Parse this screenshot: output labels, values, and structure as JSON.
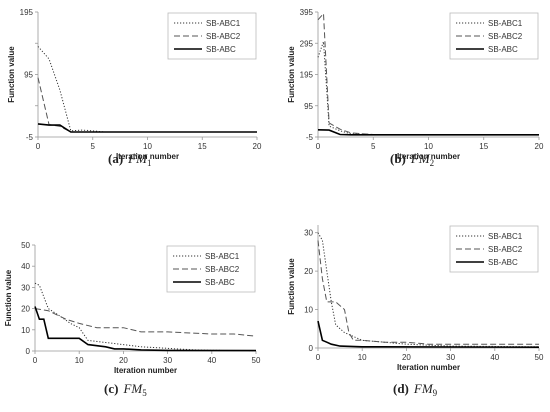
{
  "chart_data": [
    {
      "type": "line",
      "panel_id": "(a)",
      "caption_main": "FM",
      "caption_sub": "1",
      "xlabel": "Iteration number",
      "ylabel": "Function value",
      "xlim": [
        0,
        20
      ],
      "ylim": [
        -5,
        195
      ],
      "xticks": [
        0,
        5,
        10,
        15,
        20
      ],
      "yticks": [
        -5,
        45,
        95,
        145,
        195
      ],
      "yticklabels": [
        "-5",
        "",
        "95",
        "",
        "195"
      ],
      "grid": false,
      "legend_position": "top-right",
      "series": [
        {
          "name": "SB-ABC1",
          "style": "dotted",
          "x": [
            0,
            1,
            2,
            3,
            4,
            5,
            6,
            8,
            10,
            15,
            20
          ],
          "y": [
            140,
            120,
            70,
            5,
            6,
            5,
            3,
            3,
            3,
            3,
            3
          ]
        },
        {
          "name": "SB-ABC2",
          "style": "dashed",
          "x": [
            0,
            1,
            2,
            3,
            4,
            5,
            10,
            20
          ],
          "y": [
            90,
            15,
            12,
            3,
            3,
            3,
            3,
            3
          ]
        },
        {
          "name": "SB-ABC",
          "style": "solid",
          "x": [
            0,
            1,
            2,
            3,
            4,
            6,
            10,
            20
          ],
          "y": [
            16,
            14,
            14,
            3,
            3,
            3,
            3,
            3
          ]
        }
      ]
    },
    {
      "type": "line",
      "panel_id": "(b)",
      "caption_main": "FM",
      "caption_sub": "2",
      "xlabel": "Iteration number",
      "ylabel": "Function value",
      "xlim": [
        0,
        20
      ],
      "ylim": [
        -5,
        395
      ],
      "xticks": [
        0,
        5,
        10,
        15,
        20
      ],
      "yticks": [
        -5,
        95,
        195,
        295,
        395
      ],
      "yticklabels": [
        "-5",
        "95",
        "195",
        "295",
        "395"
      ],
      "grid": false,
      "legend_position": "top-right",
      "series": [
        {
          "name": "SB-ABC1",
          "style": "dotted",
          "x": [
            0,
            0.5,
            1,
            2,
            3,
            5,
            10,
            20
          ],
          "y": [
            250,
            300,
            30,
            15,
            5,
            3,
            2,
            2
          ]
        },
        {
          "name": "SB-ABC2",
          "style": "dashed",
          "x": [
            0,
            0.5,
            1,
            2,
            3,
            5,
            10,
            20
          ],
          "y": [
            370,
            390,
            40,
            20,
            8,
            3,
            2,
            2
          ]
        },
        {
          "name": "SB-ABC",
          "style": "solid",
          "x": [
            0,
            1,
            2,
            3,
            5,
            10,
            20
          ],
          "y": [
            18,
            17,
            3,
            2,
            2,
            2,
            2
          ]
        }
      ]
    },
    {
      "type": "line",
      "panel_id": "(c)",
      "caption_main": "FM",
      "caption_sub": "5",
      "xlabel": "Iteration number",
      "ylabel": "Function value",
      "xlim": [
        0,
        50
      ],
      "ylim": [
        0,
        50
      ],
      "xticks": [
        0,
        10,
        20,
        30,
        40,
        50
      ],
      "yticks": [
        0,
        10,
        20,
        30,
        40,
        50
      ],
      "yticklabels": [
        "0",
        "10",
        "20",
        "30",
        "40",
        "50"
      ],
      "grid": false,
      "legend_position": "top-right",
      "series": [
        {
          "name": "SB-ABC1",
          "style": "dotted",
          "x": [
            0,
            1,
            3,
            6,
            8,
            10,
            12,
            16,
            20,
            24,
            28,
            32,
            36,
            40,
            50
          ],
          "y": [
            32,
            31,
            20,
            16,
            13,
            11,
            5,
            4,
            3,
            2,
            1.5,
            1,
            0.5,
            0.3,
            0.2
          ]
        },
        {
          "name": "SB-ABC2",
          "style": "dashed",
          "x": [
            0,
            3,
            7,
            10,
            14,
            20,
            24,
            30,
            40,
            45,
            50
          ],
          "y": [
            20,
            19,
            15,
            13,
            11,
            11,
            9,
            9,
            8,
            8,
            7
          ]
        },
        {
          "name": "SB-ABC",
          "style": "solid",
          "x": [
            0,
            1,
            2,
            3,
            10,
            12,
            16,
            18,
            20,
            24,
            30,
            50
          ],
          "y": [
            21,
            15,
            15,
            6,
            6,
            3,
            2,
            1,
            1,
            0.5,
            0.3,
            0.2
          ]
        }
      ]
    },
    {
      "type": "line",
      "panel_id": "(d)",
      "caption_main": "FM",
      "caption_sub": "9",
      "xlabel": "Iteration number",
      "ylabel": "Function value",
      "xlim": [
        0,
        50
      ],
      "ylim": [
        0,
        32
      ],
      "xticks": [
        0,
        10,
        20,
        30,
        40,
        50
      ],
      "yticks": [
        0,
        10,
        20,
        30
      ],
      "yticklabels": [
        "0",
        "10",
        "20",
        "30"
      ],
      "grid": false,
      "legend_position": "top-right",
      "series": [
        {
          "name": "SB-ABC1",
          "style": "dotted",
          "x": [
            0,
            1,
            2,
            3,
            4,
            6,
            8,
            10,
            15,
            20,
            30,
            50
          ],
          "y": [
            30,
            28,
            20,
            12,
            6,
            4,
            3,
            2,
            1.5,
            1,
            0.5,
            0.3
          ]
        },
        {
          "name": "SB-ABC2",
          "style": "dashed",
          "x": [
            0,
            1,
            2,
            4,
            5,
            6,
            7,
            8,
            10,
            15,
            20,
            25,
            50
          ],
          "y": [
            28,
            18,
            12,
            12,
            11,
            10,
            4,
            2,
            2,
            1.5,
            1.5,
            1,
            1
          ]
        },
        {
          "name": "SB-ABC",
          "style": "solid",
          "x": [
            0,
            1,
            2,
            3,
            5,
            10,
            50
          ],
          "y": [
            7,
            2,
            1.5,
            1,
            0.5,
            0.3,
            0.2
          ]
        }
      ]
    }
  ]
}
